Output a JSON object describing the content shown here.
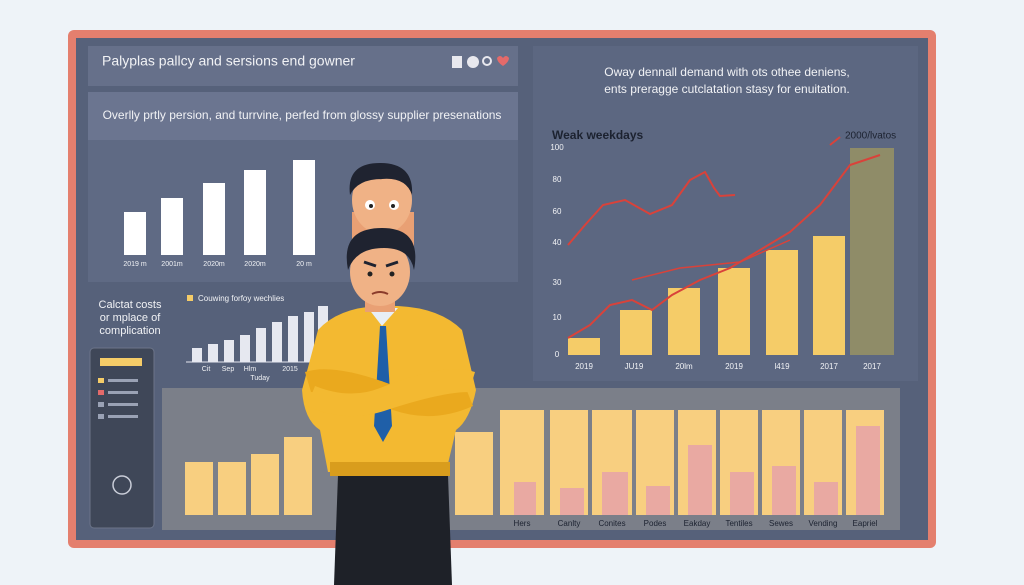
{
  "header": {
    "title": "Palyplas pallcy and sersions end gowner"
  },
  "left_chart": {
    "subtitle": "Overlly prtly persion, and turrvine, perfed from glossy supplier presenations",
    "x_labels": [
      "2019 m",
      "2001m",
      "2020m",
      "2020m",
      "20 m"
    ]
  },
  "right_chart": {
    "text_lines": [
      "Oway dennall demand with ots othee deniens,",
      "ents preragge cutclatation stasy for enuitation."
    ],
    "title": "Weak weekdays",
    "legend": "2000/lvatos",
    "y_labels": [
      "100",
      "80",
      "60",
      "40",
      "30",
      "10",
      "0"
    ],
    "x_labels": [
      "2019",
      "JU19",
      "20lm",
      "2019",
      "l419",
      "2017",
      "2017"
    ]
  },
  "small_chart": {
    "caption_lines": [
      "Calctat costs",
      "or mplace of",
      "complication"
    ],
    "legend": "Couwing forfoy wechlies",
    "x_labels": [
      "Cit",
      "Sep",
      "Hlm",
      "2015"
    ],
    "x_title": "Tuday"
  },
  "bottom_chart": {
    "labels": [
      "Hers",
      "Canlty",
      "Conites",
      "Podes",
      "Eakday",
      "Tentiles",
      "Sewes",
      "Vending",
      "Eapriel"
    ]
  }
}
